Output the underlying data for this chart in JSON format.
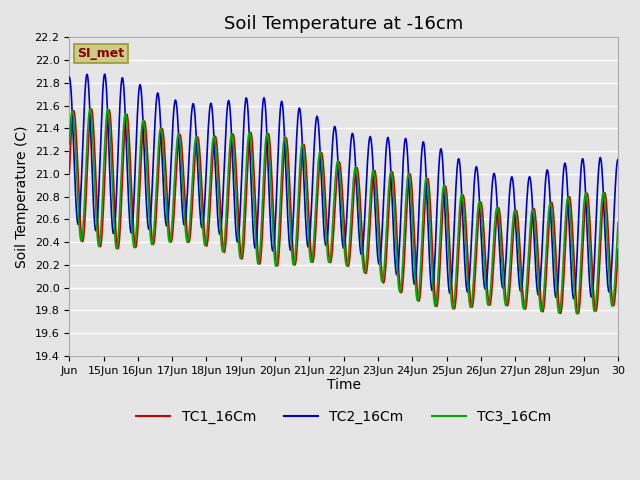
{
  "title": "Soil Temperature at -16cm",
  "xlabel": "Time",
  "ylabel": "Soil Temperature (C)",
  "ylim": [
    19.4,
    22.2
  ],
  "background_color": "#e5e5e5",
  "plot_bg_color": "#e5e5e5",
  "grid_color": "#ffffff",
  "tc1_color": "#cc0000",
  "tc2_color": "#0000cc",
  "tc3_color": "#00aa00",
  "legend_box_color": "#cccc88",
  "legend_text_color": "#880000",
  "x_tick_labels": [
    "Jun",
    "15Jun",
    "16Jun",
    "17Jun",
    "18Jun",
    "19Jun",
    "20Jun",
    "21Jun",
    "22Jun",
    "23Jun",
    "24Jun",
    "25Jun",
    "26Jun",
    "27Jun",
    "28Jun",
    "29Jun",
    "30"
  ],
  "title_fontsize": 13,
  "axis_fontsize": 10,
  "tick_fontsize": 8,
  "legend_fontsize": 10,
  "line_width": 1.2,
  "watermark": "SI_met"
}
